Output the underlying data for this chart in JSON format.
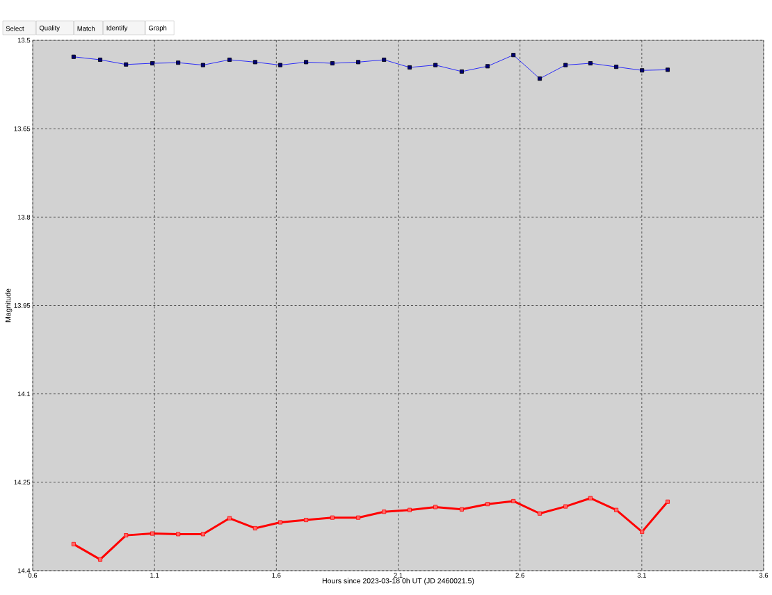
{
  "chart_data": {
    "type": "line",
    "xlabel": "Hours since 2023-03-18 0h UT (JD 2460021.5)",
    "ylabel": "Magnitude",
    "x": [
      0.768,
      0.877,
      0.983,
      1.091,
      1.197,
      1.299,
      1.408,
      1.513,
      1.616,
      1.722,
      1.83,
      1.936,
      2.042,
      2.147,
      2.253,
      2.361,
      2.467,
      2.573,
      2.681,
      2.787,
      2.889,
      2.995,
      3.101,
      3.206
    ],
    "series": [
      {
        "color": "#0000ff",
        "values": [
          13.528,
          13.533,
          13.541,
          13.539,
          13.538,
          13.542,
          13.533,
          13.537,
          13.542,
          13.537,
          13.539,
          13.537,
          13.533,
          13.546,
          13.542,
          13.553,
          13.544,
          13.525,
          13.565,
          13.542,
          13.539,
          13.545,
          13.551,
          13.55
        ]
      },
      {
        "color": "#ff0000",
        "values": [
          14.355,
          14.381,
          14.34,
          14.337,
          14.338,
          14.338,
          14.311,
          14.328,
          14.318,
          14.314,
          14.31,
          14.31,
          14.3,
          14.297,
          14.292,
          14.296,
          14.287,
          14.282,
          14.303,
          14.291,
          14.277,
          14.297,
          14.334,
          14.283
        ]
      }
    ],
    "xlim": [
      0.6,
      3.6
    ],
    "xticks": [
      0.6,
      1.1,
      1.6,
      2.1,
      2.6,
      3.1,
      3.6
    ],
    "ylim": [
      14.4,
      13.5
    ],
    "yticks": [
      13.5,
      13.65,
      13.8,
      13.95,
      14.1,
      14.25,
      14.4
    ],
    "grid": true,
    "marker": "square",
    "line_style": "solid",
    "annotations": [
      "Select",
      "Quality",
      "Match",
      "Identify",
      "Graph"
    ]
  }
}
